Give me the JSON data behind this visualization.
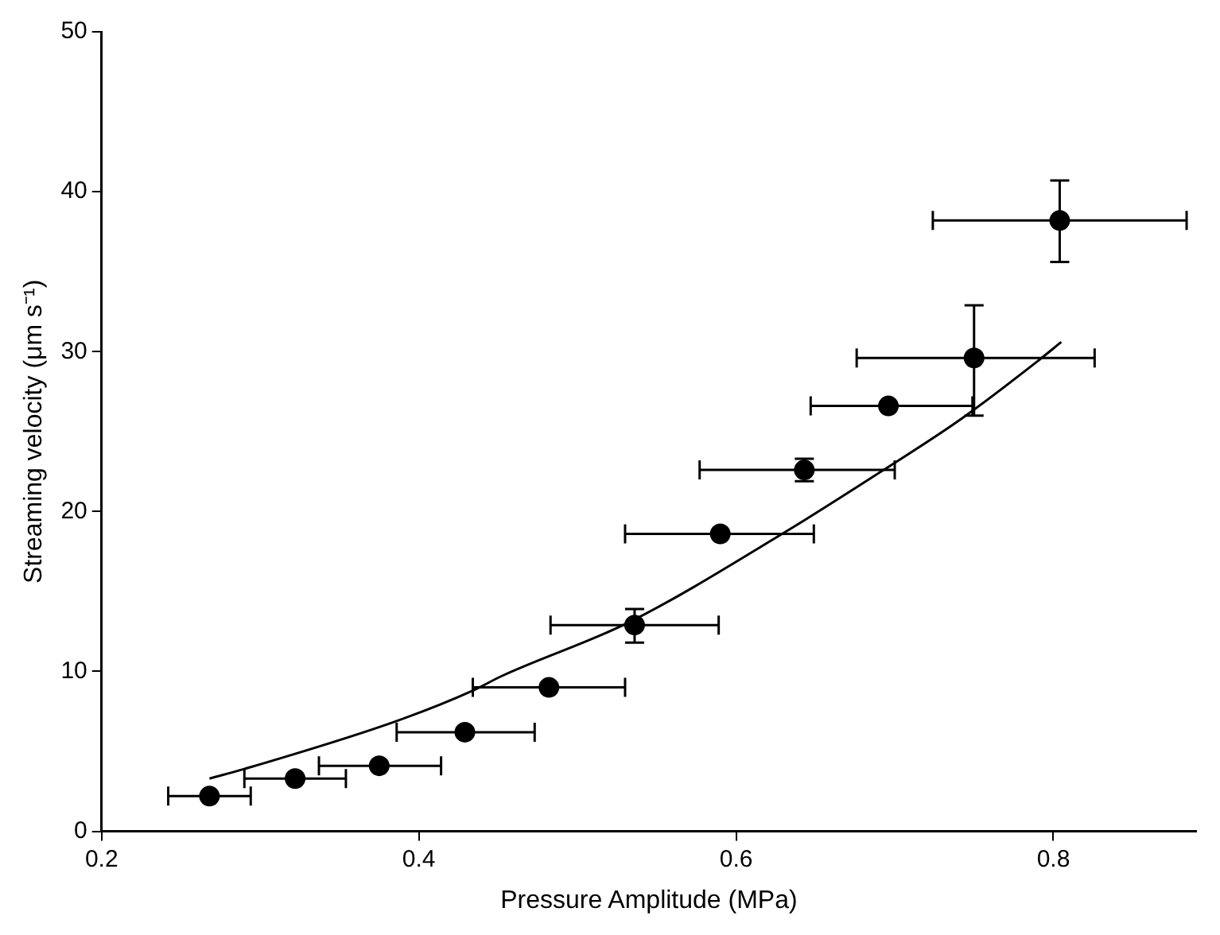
{
  "chart_data": {
    "type": "scatter",
    "xlabel": "Pressure Amplitude (MPa)",
    "ylabel": "Streaming velocity (μm s⁻¹)",
    "xlim": [
      0.2,
      0.89
    ],
    "xticks": [
      0.2,
      0.4,
      0.6,
      0.8
    ],
    "ylim": [
      0,
      50
    ],
    "yticks": [
      0,
      10,
      20,
      30,
      40,
      50
    ],
    "marker": "circle",
    "series": [
      {
        "color": "#000000",
        "x": [
          0.268,
          0.322,
          0.375,
          0.429,
          0.482,
          0.536,
          0.59,
          0.643,
          0.696,
          0.75,
          0.804
        ],
        "values": [
          2.2,
          3.3,
          4.1,
          6.2,
          9.0,
          12.9,
          18.6,
          22.6,
          26.6,
          29.6,
          38.2
        ],
        "errors": [
          null,
          null,
          null,
          null,
          null,
          [
            11.8,
            13.9
          ],
          null,
          [
            21.9,
            23.3
          ],
          null,
          [
            26.0,
            32.9
          ],
          [
            35.6,
            40.7
          ]
        ],
        "xerrors": [
          [
            0.242,
            0.294
          ],
          [
            0.29,
            0.354
          ],
          [
            0.337,
            0.414
          ],
          [
            0.386,
            0.473
          ],
          [
            0.434,
            0.53
          ],
          [
            0.483,
            0.589
          ],
          [
            0.53,
            0.649
          ],
          [
            0.577,
            0.7
          ],
          [
            0.647,
            0.749
          ],
          [
            0.676,
            0.826
          ],
          [
            0.724,
            0.884
          ]
        ]
      },
      {
        "type": "line",
        "color": "#000000",
        "marker": "none",
        "x": [
          0.268,
          0.29,
          0.386,
          0.434,
          0.452,
          0.533,
          0.629,
          0.693,
          0.742,
          0.79,
          0.805
        ],
        "values": [
          3.3,
          3.9,
          6.9,
          8.8,
          9.7,
          13.1,
          18.6,
          22.6,
          25.8,
          29.4,
          30.6
        ]
      }
    ]
  }
}
